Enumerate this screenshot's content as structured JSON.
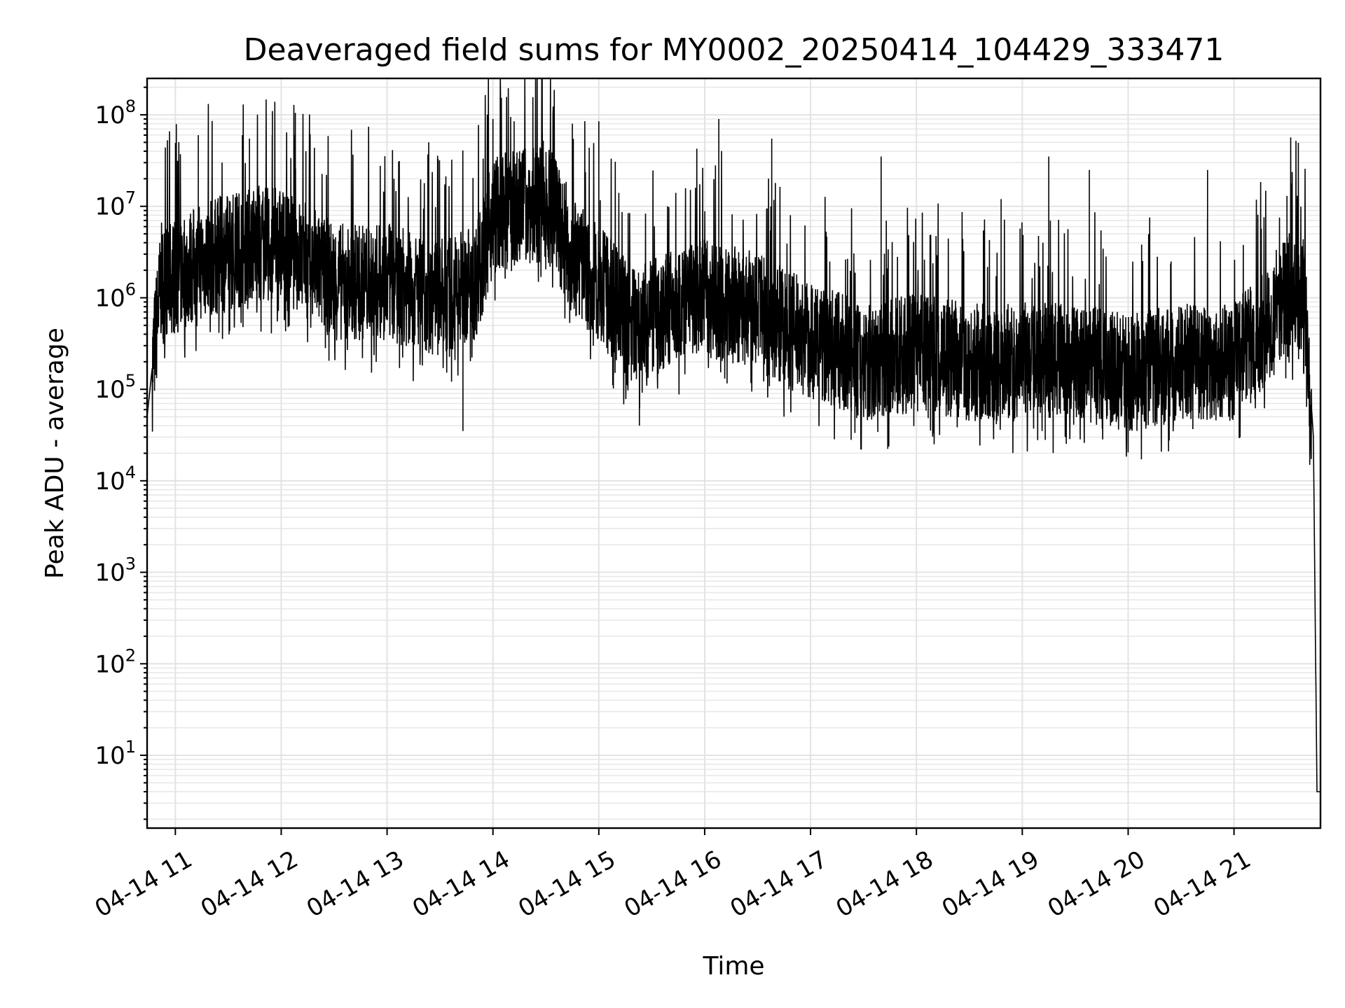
{
  "chart_data": {
    "type": "line",
    "title": "Deaveraged field sums for MY0002_20250414_104429_333471",
    "xlabel": "Time",
    "ylabel": "Peak ADU - average",
    "yscale": "log",
    "ylim": [
      1.6,
      250000000
    ],
    "xlim": [
      "2025-04-14 10:44",
      "2025-04-14 21:49"
    ],
    "grid": true,
    "grid_minor": true,
    "line_color": "#000000",
    "x_ticks": [
      {
        "value": "2025-04-14 11:00",
        "label": "04-14 11"
      },
      {
        "value": "2025-04-14 12:00",
        "label": "04-14 12"
      },
      {
        "value": "2025-04-14 13:00",
        "label": "04-14 13"
      },
      {
        "value": "2025-04-14 14:00",
        "label": "04-14 14"
      },
      {
        "value": "2025-04-14 15:00",
        "label": "04-14 15"
      },
      {
        "value": "2025-04-14 16:00",
        "label": "04-14 16"
      },
      {
        "value": "2025-04-14 17:00",
        "label": "04-14 17"
      },
      {
        "value": "2025-04-14 18:00",
        "label": "04-14 18"
      },
      {
        "value": "2025-04-14 19:00",
        "label": "04-14 19"
      },
      {
        "value": "2025-04-14 20:00",
        "label": "04-14 20"
      },
      {
        "value": "2025-04-14 21:00",
        "label": "04-14 21"
      }
    ],
    "y_ticks": [
      {
        "value": 10,
        "base": "10",
        "exp": "1"
      },
      {
        "value": 100,
        "base": "10",
        "exp": "2"
      },
      {
        "value": 1000,
        "base": "10",
        "exp": "3"
      },
      {
        "value": 10000,
        "base": "10",
        "exp": "4"
      },
      {
        "value": 100000,
        "base": "10",
        "exp": "5"
      },
      {
        "value": 1000000,
        "base": "10",
        "exp": "6"
      },
      {
        "value": 10000000,
        "base": "10",
        "exp": "7"
      },
      {
        "value": 100000000,
        "base": "10",
        "exp": "8"
      }
    ],
    "baseline_envelope": [
      {
        "t": "10:44",
        "v": 50000
      },
      {
        "t": "10:52",
        "v": 1500000
      },
      {
        "t": "11:15",
        "v": 2500000
      },
      {
        "t": "11:45",
        "v": 4000000
      },
      {
        "t": "12:05",
        "v": 3500000
      },
      {
        "t": "12:30",
        "v": 1500000
      },
      {
        "t": "13:00",
        "v": 1500000
      },
      {
        "t": "13:30",
        "v": 1000000
      },
      {
        "t": "13:50",
        "v": 1500000
      },
      {
        "t": "14:00",
        "v": 8000000
      },
      {
        "t": "14:30",
        "v": 12000000
      },
      {
        "t": "14:45",
        "v": 3000000
      },
      {
        "t": "15:20",
        "v": 500000
      },
      {
        "t": "15:45",
        "v": 800000
      },
      {
        "t": "16:00",
        "v": 1000000
      },
      {
        "t": "16:30",
        "v": 700000
      },
      {
        "t": "17:00",
        "v": 350000
      },
      {
        "t": "17:30",
        "v": 200000
      },
      {
        "t": "18:00",
        "v": 250000
      },
      {
        "t": "18:30",
        "v": 200000
      },
      {
        "t": "19:00",
        "v": 200000
      },
      {
        "t": "19:30",
        "v": 200000
      },
      {
        "t": "20:00",
        "v": 150000
      },
      {
        "t": "20:30",
        "v": 200000
      },
      {
        "t": "21:00",
        "v": 200000
      },
      {
        "t": "21:15",
        "v": 400000
      },
      {
        "t": "21:30",
        "v": 1200000
      },
      {
        "t": "21:40",
        "v": 1000000
      },
      {
        "t": "21:45",
        "v": 30000
      },
      {
        "t": "21:47",
        "v": 4
      },
      {
        "t": "21:49",
        "v": 4
      }
    ],
    "spikes": [
      {
        "t": "11:13",
        "v": 60000000
      },
      {
        "t": "11:38",
        "v": 60000000
      },
      {
        "t": "11:42",
        "v": 55000000
      },
      {
        "t": "11:55",
        "v": 110000000
      },
      {
        "t": "12:08",
        "v": 105000000
      },
      {
        "t": "12:14",
        "v": 40000000
      },
      {
        "t": "14:00",
        "v": 90000000
      },
      {
        "t": "14:12",
        "v": 85000000
      },
      {
        "t": "14:28",
        "v": 65000000
      },
      {
        "t": "14:45",
        "v": 80000000
      },
      {
        "t": "15:00",
        "v": 85000000
      },
      {
        "t": "16:08",
        "v": 90000000
      },
      {
        "t": "16:38",
        "v": 55000000
      },
      {
        "t": "17:40",
        "v": 35000000
      },
      {
        "t": "18:48",
        "v": 12000000
      },
      {
        "t": "19:15",
        "v": 35000000
      },
      {
        "t": "19:38",
        "v": 25000000
      },
      {
        "t": "20:45",
        "v": 25000000
      },
      {
        "t": "21:30",
        "v": 13000000
      }
    ],
    "dips": [
      {
        "t": "13:43",
        "v": 35000
      },
      {
        "t": "15:23",
        "v": 40000
      },
      {
        "t": "17:23",
        "v": 28000
      },
      {
        "t": "19:13",
        "v": 28000
      }
    ]
  }
}
